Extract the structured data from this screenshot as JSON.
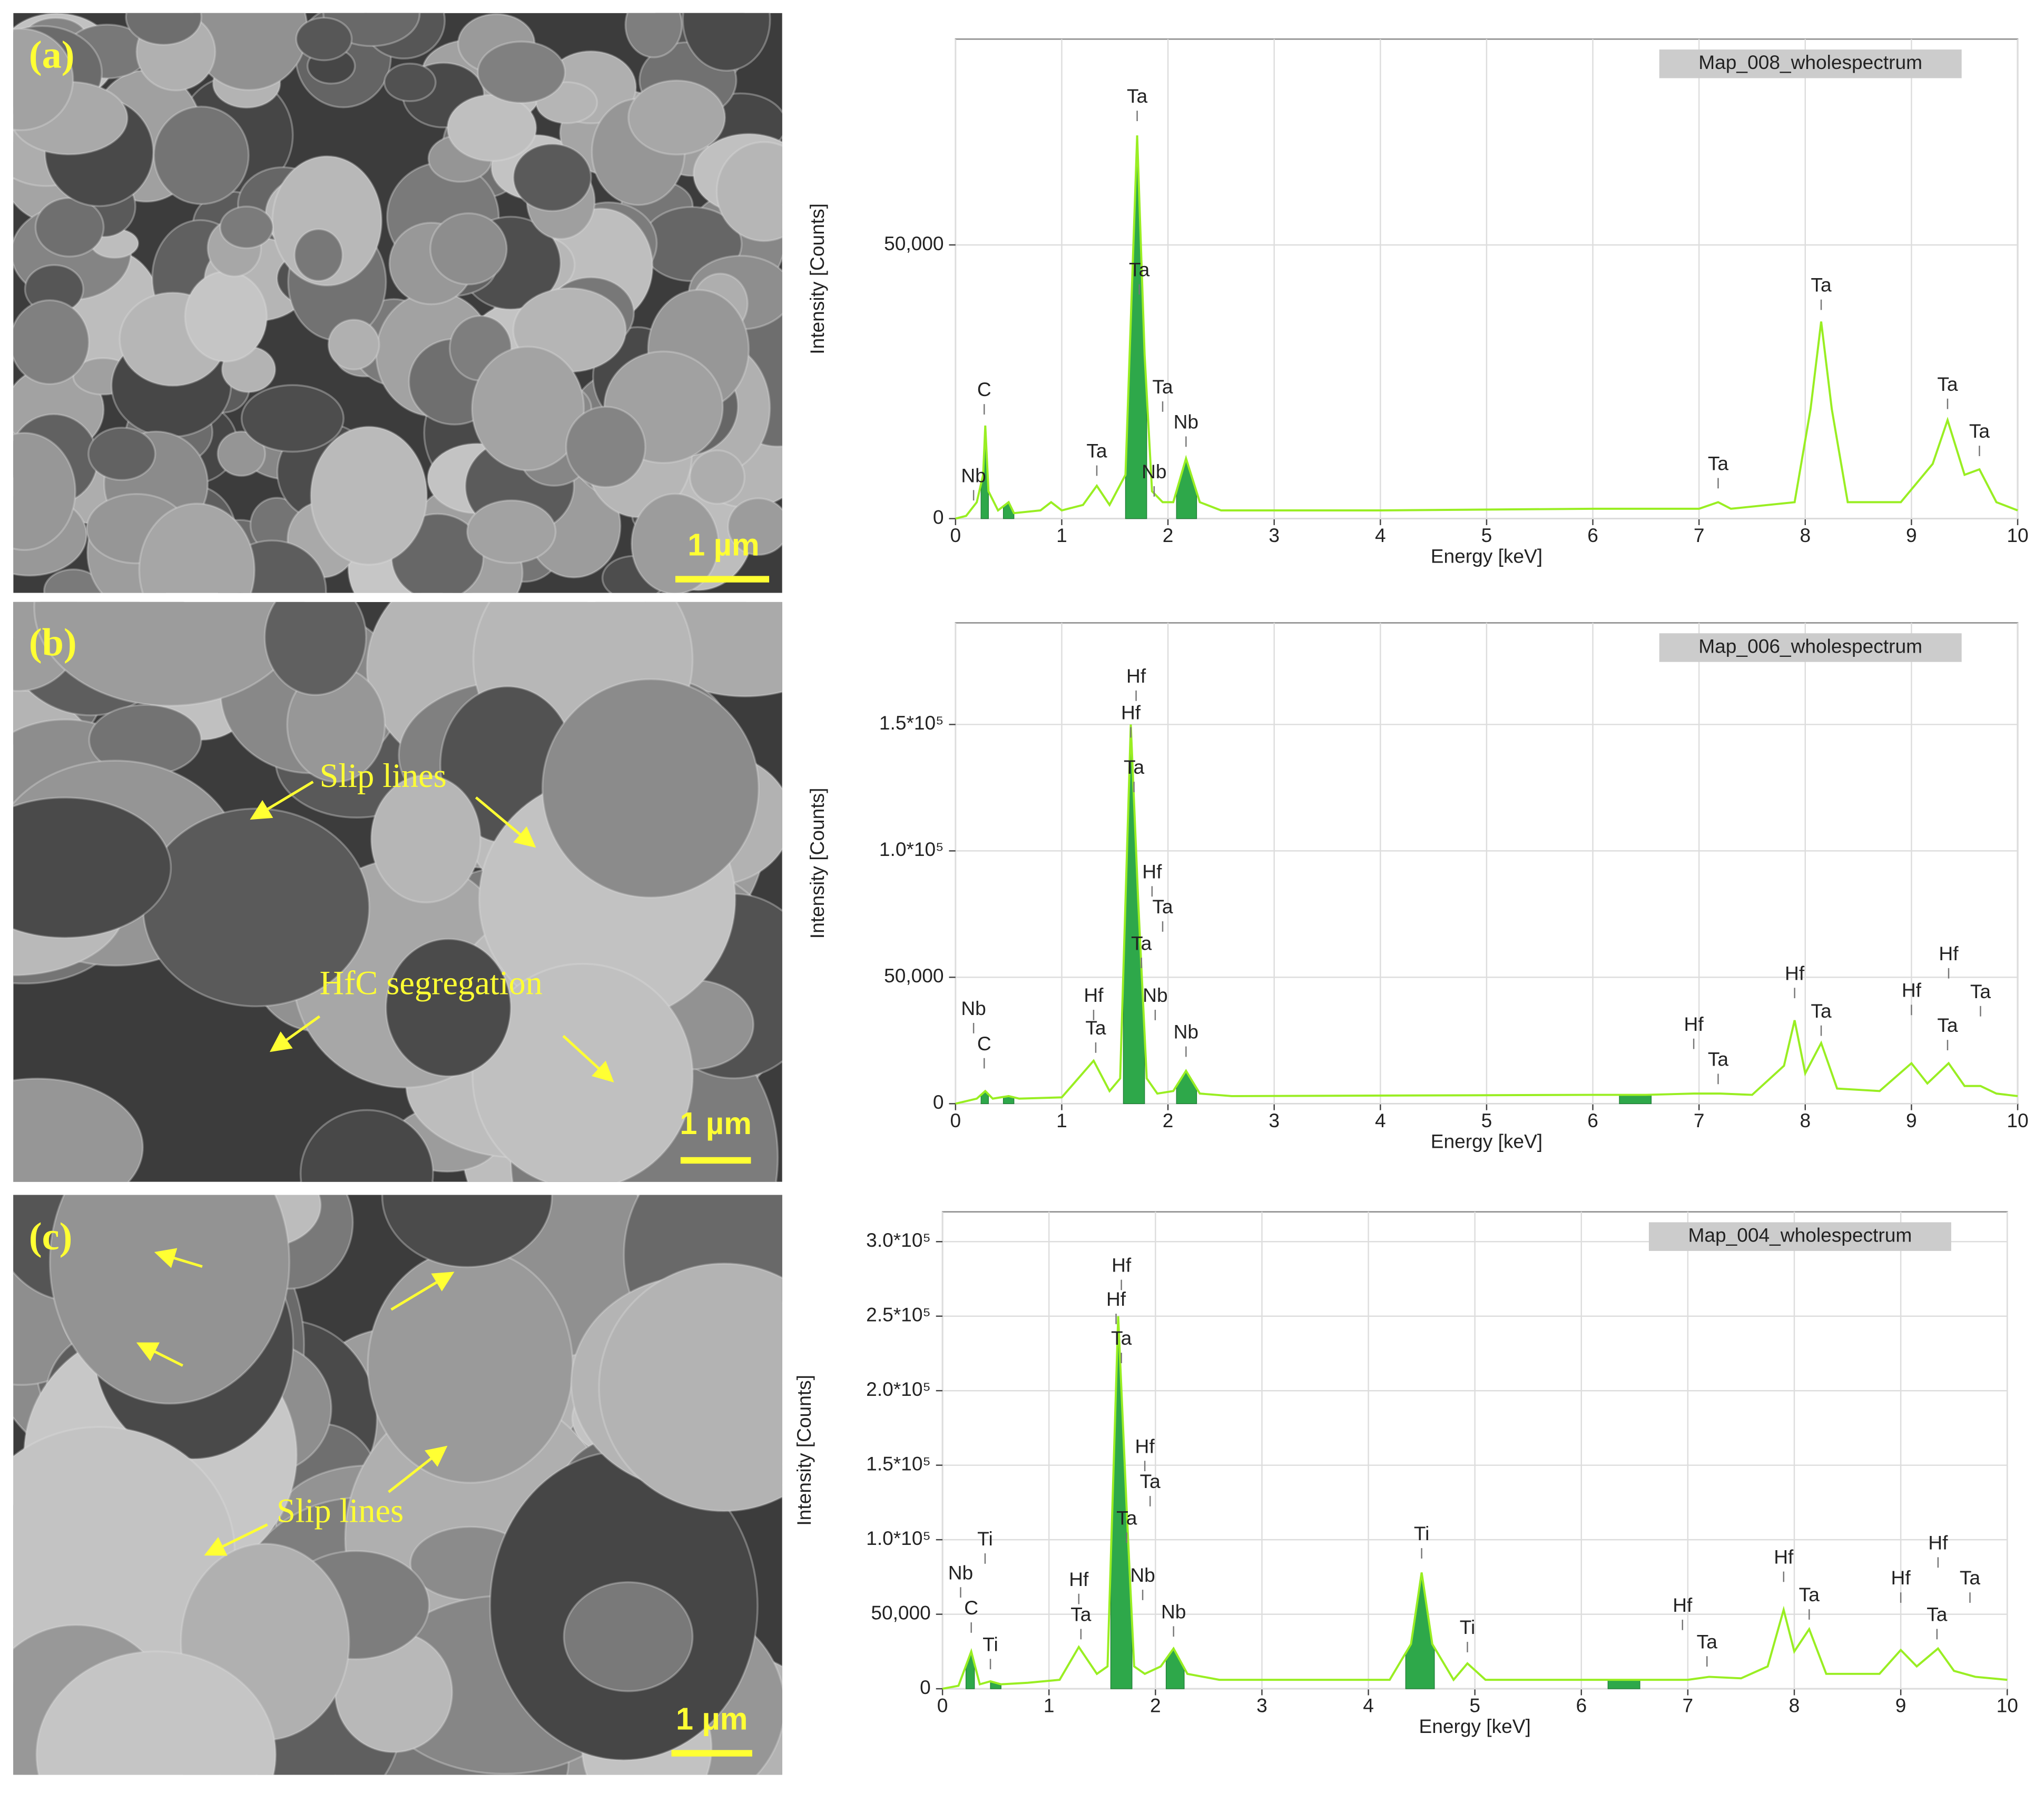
{
  "images": [
    {
      "label": "(a)",
      "scale_bar": "1 µm"
    },
    {
      "label": "(b)",
      "scale_bar": "1 µm",
      "notes": [
        "Slip lines",
        "HfC segregation"
      ]
    },
    {
      "label": "(c)",
      "scale_bar": "1 µm",
      "notes": [
        "Slip lines"
      ]
    }
  ],
  "chart_data": [
    {
      "type": "line",
      "title": "Map_008_wholespectrum",
      "xlabel": "Energy [keV]",
      "ylabel": "Intensity [Counts]",
      "color": "#99ee22",
      "fill_color": "#2ea84a",
      "grid": true,
      "xlim": [
        0,
        10
      ],
      "xticks": [
        0,
        1,
        2,
        3,
        4,
        5,
        6,
        7,
        8,
        9,
        10
      ],
      "ylim": [
        0,
        87600
      ],
      "yticks": [
        0,
        {
          "value": 50000,
          "label": "50,000"
        }
      ],
      "x": [
        0,
        0.1,
        0.2,
        0.26,
        0.28,
        0.31,
        0.4,
        0.5,
        0.55,
        0.8,
        0.9,
        1.0,
        1.2,
        1.33,
        1.45,
        1.6,
        1.71,
        1.78,
        1.85,
        1.95,
        2.05,
        2.17,
        2.3,
        2.5,
        4,
        6,
        7.0,
        7.18,
        7.3,
        7.9,
        8.05,
        8.15,
        8.25,
        8.4,
        8.9,
        9.2,
        9.34,
        9.5,
        9.64,
        9.8,
        10
      ],
      "values": [
        0,
        500,
        3000,
        8000,
        17000,
        5000,
        1500,
        3000,
        1000,
        1500,
        3000,
        1500,
        2500,
        6000,
        2500,
        8000,
        70000,
        30000,
        5000,
        3000,
        3000,
        11000,
        3000,
        1500,
        1500,
        1800,
        1800,
        3000,
        1800,
        3000,
        20000,
        36000,
        20000,
        3000,
        3000,
        10000,
        18000,
        8000,
        9000,
        3000,
        1500
      ],
      "fill_ranges": [
        [
          0.24,
          0.31
        ],
        [
          0.45,
          0.55
        ],
        [
          1.6,
          1.8
        ],
        [
          2.08,
          2.27
        ]
      ],
      "annotations": [
        {
          "text": "C",
          "x": 0.27,
          "y": 23300
        },
        {
          "text": "Nb",
          "x": 0.17,
          "y": 7600
        },
        {
          "text": "Ta",
          "x": 1.33,
          "y": 12100
        },
        {
          "text": "Ta",
          "x": 1.71,
          "y": 76900
        },
        {
          "text": "Ta",
          "x": 1.73,
          "y": 45200
        },
        {
          "text": "Ta",
          "x": 1.95,
          "y": 23800
        },
        {
          "text": "Nb",
          "x": 1.87,
          "y": 8300
        },
        {
          "text": "Nb",
          "x": 2.17,
          "y": 17400
        },
        {
          "text": "Ta",
          "x": 7.18,
          "y": 9800
        },
        {
          "text": "Ta",
          "x": 8.15,
          "y": 42400
        },
        {
          "text": "Ta",
          "x": 9.34,
          "y": 24300
        },
        {
          "text": "Ta",
          "x": 9.64,
          "y": 15700
        }
      ]
    },
    {
      "type": "line",
      "title": "Map_006_wholespectrum",
      "xlabel": "Energy [keV]",
      "ylabel": "Intensity [Counts]",
      "color": "#99ee22",
      "fill_color": "#2ea84a",
      "grid": true,
      "xlim": [
        0,
        10
      ],
      "xticks": [
        0,
        1,
        2,
        3,
        4,
        5,
        6,
        7,
        8,
        9,
        10
      ],
      "ylim": [
        0,
        190200
      ],
      "yticks": [
        0,
        {
          "value": 50000,
          "label": "50,000"
        },
        {
          "value": 100000,
          "label": "1.0*10⁵"
        },
        {
          "value": 150000,
          "label": "1.5*10⁵"
        }
      ],
      "x": [
        0,
        0.2,
        0.28,
        0.35,
        0.5,
        0.6,
        1.0,
        1.3,
        1.45,
        1.55,
        1.65,
        1.72,
        1.8,
        1.9,
        2.05,
        2.17,
        2.3,
        2.6,
        6,
        6.5,
        6.95,
        7.2,
        7.5,
        7.8,
        7.9,
        8.0,
        8.15,
        8.3,
        8.7,
        9.0,
        9.15,
        9.35,
        9.5,
        9.65,
        9.8,
        10
      ],
      "values": [
        0,
        2000,
        5000,
        2000,
        3000,
        2000,
        2500,
        17000,
        5000,
        10000,
        150000,
        80000,
        10000,
        4000,
        5000,
        13000,
        4000,
        3000,
        3500,
        3500,
        4000,
        4000,
        3500,
        15000,
        33000,
        12000,
        24000,
        6000,
        5000,
        16000,
        8000,
        16000,
        7000,
        7000,
        4000,
        3000
      ],
      "fill_ranges": [
        [
          0.24,
          0.31
        ],
        [
          0.45,
          0.55
        ],
        [
          1.58,
          1.78
        ],
        [
          2.08,
          2.27
        ],
        [
          6.25,
          6.55
        ]
      ],
      "annotations": [
        {
          "text": "Nb",
          "x": 0.17,
          "y": 37100
        },
        {
          "text": "C",
          "x": 0.27,
          "y": 23200
        },
        {
          "text": "Hf",
          "x": 1.3,
          "y": 42300
        },
        {
          "text": "Ta",
          "x": 1.32,
          "y": 29400
        },
        {
          "text": "Hf",
          "x": 1.7,
          "y": 168600
        },
        {
          "text": "Hf",
          "x": 1.65,
          "y": 154100
        },
        {
          "text": "Ta",
          "x": 1.68,
          "y": 132500
        },
        {
          "text": "Hf",
          "x": 1.85,
          "y": 91200
        },
        {
          "text": "Ta",
          "x": 1.95,
          "y": 77300
        },
        {
          "text": "Ta",
          "x": 1.75,
          "y": 62900
        },
        {
          "text": "Nb",
          "x": 1.88,
          "y": 42300
        },
        {
          "text": "Nb",
          "x": 2.17,
          "y": 27800
        },
        {
          "text": "Hf",
          "x": 6.95,
          "y": 30900
        },
        {
          "text": "Ta",
          "x": 7.18,
          "y": 17000
        },
        {
          "text": "Hf",
          "x": 7.9,
          "y": 51000
        },
        {
          "text": "Ta",
          "x": 8.15,
          "y": 36100
        },
        {
          "text": "Hf",
          "x": 9.0,
          "y": 44300
        },
        {
          "text": "Ta",
          "x": 9.34,
          "y": 30400
        },
        {
          "text": "Hf",
          "x": 9.35,
          "y": 58800
        },
        {
          "text": "Ta",
          "x": 9.65,
          "y": 43800
        }
      ]
    },
    {
      "type": "line",
      "title": "Map_004_wholespectrum",
      "xlabel": "Energy [keV]",
      "ylabel": "Intensity [Counts]",
      "color": "#99ee22",
      "fill_color": "#2ea84a",
      "grid": true,
      "xlim": [
        0,
        10
      ],
      "xticks": [
        0,
        1,
        2,
        3,
        4,
        5,
        6,
        7,
        8,
        9,
        10
      ],
      "ylim": [
        0,
        320000
      ],
      "yticks": [
        0,
        {
          "value": 50000,
          "label": "50,000"
        },
        {
          "value": 100000,
          "label": "1.0*10⁵"
        },
        {
          "value": 150000,
          "label": "1.5*10⁵"
        },
        {
          "value": 200000,
          "label": "2.0*10⁵"
        },
        {
          "value": 250000,
          "label": "2.5*10⁵"
        },
        {
          "value": 300000,
          "label": "3.0*10⁵"
        }
      ],
      "x": [
        0,
        0.15,
        0.27,
        0.35,
        0.45,
        0.55,
        0.8,
        1.1,
        1.28,
        1.45,
        1.55,
        1.65,
        1.73,
        1.8,
        1.9,
        2.05,
        2.17,
        2.3,
        2.6,
        4.2,
        4.4,
        4.5,
        4.6,
        4.8,
        4.93,
        5.1,
        6,
        7,
        7.2,
        7.5,
        7.75,
        7.9,
        8.0,
        8.14,
        8.3,
        8.8,
        9.0,
        9.15,
        9.35,
        9.5,
        9.7,
        10
      ],
      "values": [
        0,
        2000,
        25000,
        3000,
        5000,
        3000,
        4000,
        6000,
        28000,
        10000,
        15000,
        250000,
        120000,
        15000,
        10000,
        15000,
        27000,
        10000,
        6000,
        6000,
        30000,
        78000,
        30000,
        6000,
        17000,
        6000,
        6000,
        6000,
        8000,
        7000,
        15000,
        53000,
        25000,
        40000,
        10000,
        10000,
        26000,
        15000,
        27000,
        12000,
        8000,
        6000
      ],
      "fill_ranges": [
        [
          0.22,
          0.3
        ],
        [
          0.45,
          0.55
        ],
        [
          1.58,
          1.78
        ],
        [
          2.1,
          2.27
        ],
        [
          4.35,
          4.62
        ],
        [
          6.25,
          6.55
        ]
      ],
      "annotations": [
        {
          "text": "Nb",
          "x": 0.17,
          "y": 76900
        },
        {
          "text": "Ti",
          "x": 0.4,
          "y": 99600
        },
        {
          "text": "C",
          "x": 0.27,
          "y": 53300
        },
        {
          "text": "Ti",
          "x": 0.45,
          "y": 28800
        },
        {
          "text": "Hf",
          "x": 1.28,
          "y": 72500
        },
        {
          "text": "Ta",
          "x": 1.3,
          "y": 48900
        },
        {
          "text": "Hf",
          "x": 1.68,
          "y": 283200
        },
        {
          "text": "Hf",
          "x": 1.63,
          "y": 260400
        },
        {
          "text": "Ta",
          "x": 1.68,
          "y": 234200
        },
        {
          "text": "Hf",
          "x": 1.9,
          "y": 161700
        },
        {
          "text": "Ta",
          "x": 1.95,
          "y": 138100
        },
        {
          "text": "Ta",
          "x": 1.73,
          "y": 113600
        },
        {
          "text": "Nb",
          "x": 1.88,
          "y": 75200
        },
        {
          "text": "Nb",
          "x": 2.17,
          "y": 50700
        },
        {
          "text": "Ti",
          "x": 4.5,
          "y": 103100
        },
        {
          "text": "Ti",
          "x": 4.93,
          "y": 40200
        },
        {
          "text": "Hf",
          "x": 6.95,
          "y": 55100
        },
        {
          "text": "Ta",
          "x": 7.18,
          "y": 30600
        },
        {
          "text": "Hf",
          "x": 7.9,
          "y": 87400
        },
        {
          "text": "Ta",
          "x": 8.14,
          "y": 62100
        },
        {
          "text": "Hf",
          "x": 9.0,
          "y": 73400
        },
        {
          "text": "Ta",
          "x": 9.34,
          "y": 48900
        },
        {
          "text": "Hf",
          "x": 9.35,
          "y": 97000
        },
        {
          "text": "Ta",
          "x": 9.65,
          "y": 73400
        }
      ]
    }
  ]
}
